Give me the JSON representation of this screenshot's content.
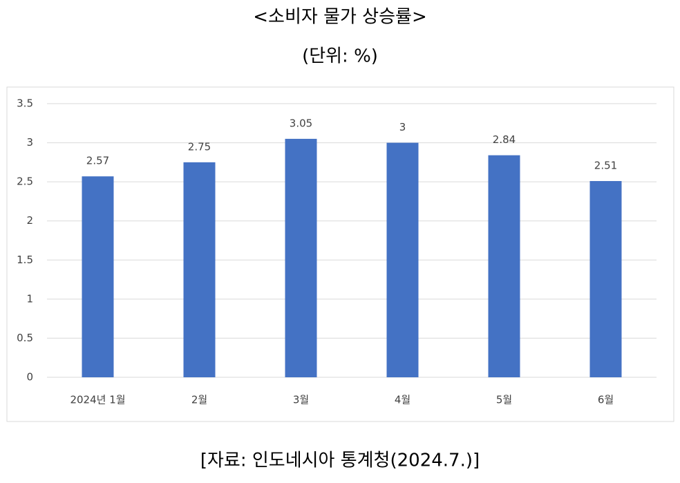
{
  "chart_data": {
    "type": "bar",
    "title": "<소비자 물가 상승률>",
    "subtitle": "(단위: %)",
    "categories": [
      "2024년 1월",
      "2월",
      "3월",
      "4월",
      "5월",
      "6월"
    ],
    "values": [
      2.57,
      2.75,
      3.05,
      3,
      2.84,
      2.51
    ],
    "color": "#4472c4",
    "ylim": [
      0,
      3.5
    ],
    "yticks": [
      0,
      0.5,
      1,
      1.5,
      2,
      2.5,
      3,
      3.5
    ],
    "grid": true,
    "source": "[자료: 인도네시아 통계청(2024.7.)]"
  }
}
